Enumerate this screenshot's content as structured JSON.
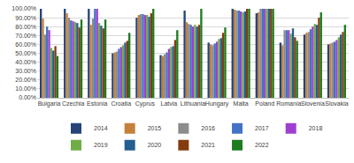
{
  "chart_data": {
    "type": "bar",
    "categories": [
      "Bulgaria",
      "Czechia",
      "Estonia",
      "Croatia",
      "Cyprus",
      "Latvia",
      "Lithuania",
      "Hungary",
      "Malta",
      "Poland",
      "Romania",
      "Slovenia",
      "Slovakia"
    ],
    "series": [
      {
        "name": "2014",
        "color": "#264478",
        "values": [
          100,
          100,
          100,
          50,
          90,
          48,
          98,
          62,
          100,
          95,
          62,
          71,
          60
        ]
      },
      {
        "name": "2015",
        "color": "#c5803a",
        "values": [
          89,
          95,
          82,
          51,
          93,
          47,
          85,
          60,
          99,
          96,
          59,
          73,
          61
        ]
      },
      {
        "name": "2016",
        "color": "#8c8c8c",
        "values": [
          71,
          90,
          89,
          52,
          94,
          49,
          83,
          59,
          98,
          100,
          76,
          74,
          62
        ]
      },
      {
        "name": "2017",
        "color": "#4472c4",
        "values": [
          80,
          87,
          100,
          55,
          94,
          51,
          82,
          61,
          98,
          100,
          76,
          77,
          63
        ]
      },
      {
        "name": "2018",
        "color": "#9e3fd0",
        "values": [
          76,
          86,
          100,
          57,
          93,
          55,
          80,
          63,
          97,
          100,
          76,
          80,
          65
        ]
      },
      {
        "name": "2019",
        "color": "#70ad47",
        "values": [
          56,
          85,
          84,
          59,
          93,
          57,
          82,
          66,
          96,
          100,
          72,
          83,
          68
        ]
      },
      {
        "name": "2020",
        "color": "#255e91",
        "values": [
          53,
          84,
          81,
          62,
          91,
          58,
          80,
          67,
          97,
          100,
          78,
          82,
          71
        ]
      },
      {
        "name": "2021",
        "color": "#843c0c",
        "values": [
          58,
          79,
          78,
          64,
          95,
          65,
          82,
          73,
          100,
          100,
          68,
          90,
          74
        ]
      },
      {
        "name": "2022",
        "color": "#1e7b1e",
        "values": [
          47,
          88,
          88,
          73,
          100,
          76,
          100,
          79,
          100,
          100,
          64,
          96,
          82
        ]
      }
    ],
    "ylim": [
      0,
      100
    ],
    "yticks": [
      {
        "value": 0,
        "label": "0.00%"
      },
      {
        "value": 10,
        "label": "10.00%"
      },
      {
        "value": 20,
        "label": "20.00%"
      },
      {
        "value": 30,
        "label": "30.00%"
      },
      {
        "value": 40,
        "label": "40.00%"
      },
      {
        "value": 50,
        "label": "50.00%"
      },
      {
        "value": 60,
        "label": "60.00%"
      },
      {
        "value": 70,
        "label": "70.00%"
      },
      {
        "value": 80,
        "label": "80.00%"
      },
      {
        "value": 90,
        "label": "90.00%"
      },
      {
        "value": 100,
        "label": "100.00%"
      }
    ],
    "grid": true,
    "legend": "bottom"
  }
}
